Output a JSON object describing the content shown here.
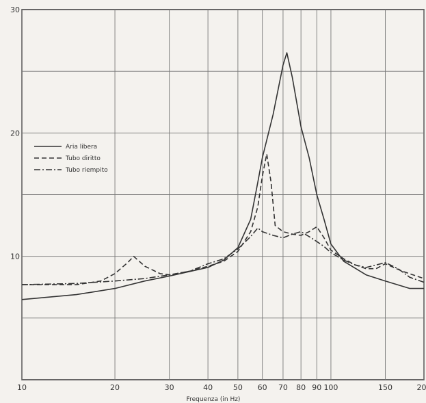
{
  "chart_data": {
    "type": "line",
    "title": "",
    "xlabel": "Frequenza (in Hz)",
    "ylabel": "",
    "x_scale": "log",
    "xlim": [
      10,
      200
    ],
    "ylim": [
      0,
      30
    ],
    "grid": true,
    "legend_position": "upper-left",
    "x_tick_values": [
      10,
      20,
      30,
      40,
      50,
      60,
      70,
      80,
      90,
      100,
      150,
      200
    ],
    "x_tick_labels": [
      "10",
      "20",
      "30",
      "40",
      "50",
      "60",
      "70",
      "80",
      "90",
      "100",
      "150",
      "200"
    ],
    "y_tick_values": [
      10,
      20,
      30
    ],
    "y_tick_labels": [
      "10",
      "20",
      "30"
    ],
    "series": [
      {
        "name": "Aria libera",
        "dash": "solid",
        "points": [
          [
            10,
            6.5
          ],
          [
            15,
            6.9
          ],
          [
            20,
            7.4
          ],
          [
            25,
            8.0
          ],
          [
            30,
            8.4
          ],
          [
            40,
            9.1
          ],
          [
            45,
            9.7
          ],
          [
            50,
            10.7
          ],
          [
            55,
            13.0
          ],
          [
            58,
            16.0
          ],
          [
            60,
            18.0
          ],
          [
            65,
            21.5
          ],
          [
            70,
            25.5
          ],
          [
            72,
            26.5
          ],
          [
            75,
            24.5
          ],
          [
            80,
            20.5
          ],
          [
            85,
            18.0
          ],
          [
            90,
            15.0
          ],
          [
            95,
            13.0
          ],
          [
            100,
            11.0
          ],
          [
            110,
            9.6
          ],
          [
            130,
            8.5
          ],
          [
            150,
            8.0
          ],
          [
            180,
            7.4
          ],
          [
            200,
            7.4
          ]
        ]
      },
      {
        "name": "Tubo diritto",
        "dash": "dashed",
        "points": [
          [
            10,
            7.7
          ],
          [
            15,
            7.7
          ],
          [
            18,
            8.0
          ],
          [
            20,
            8.6
          ],
          [
            22,
            9.5
          ],
          [
            23,
            10.0
          ],
          [
            25,
            9.2
          ],
          [
            28,
            8.6
          ],
          [
            30,
            8.5
          ],
          [
            35,
            8.8
          ],
          [
            40,
            9.2
          ],
          [
            45,
            9.6
          ],
          [
            50,
            10.4
          ],
          [
            55,
            12.0
          ],
          [
            58,
            14.0
          ],
          [
            60,
            16.5
          ],
          [
            62,
            18.3
          ],
          [
            64,
            16.0
          ],
          [
            66,
            12.5
          ],
          [
            70,
            12.0
          ],
          [
            75,
            11.8
          ],
          [
            80,
            11.7
          ],
          [
            85,
            12.0
          ],
          [
            90,
            12.4
          ],
          [
            95,
            11.5
          ],
          [
            100,
            10.5
          ],
          [
            110,
            9.8
          ],
          [
            120,
            9.3
          ],
          [
            130,
            9.0
          ],
          [
            140,
            9.0
          ],
          [
            150,
            9.4
          ],
          [
            170,
            8.8
          ],
          [
            200,
            8.2
          ]
        ]
      },
      {
        "name": "Tubo riempito",
        "dash": "dashdot",
        "points": [
          [
            10,
            7.7
          ],
          [
            15,
            7.8
          ],
          [
            20,
            8.0
          ],
          [
            25,
            8.2
          ],
          [
            30,
            8.5
          ],
          [
            35,
            8.8
          ],
          [
            40,
            9.4
          ],
          [
            45,
            9.8
          ],
          [
            50,
            10.6
          ],
          [
            55,
            11.6
          ],
          [
            58,
            12.3
          ],
          [
            60,
            12.0
          ],
          [
            65,
            11.7
          ],
          [
            70,
            11.5
          ],
          [
            75,
            11.8
          ],
          [
            80,
            12.0
          ],
          [
            85,
            11.6
          ],
          [
            90,
            11.2
          ],
          [
            95,
            10.8
          ],
          [
            100,
            10.3
          ],
          [
            110,
            9.7
          ],
          [
            120,
            9.3
          ],
          [
            130,
            9.1
          ],
          [
            140,
            9.3
          ],
          [
            150,
            9.5
          ],
          [
            165,
            9.0
          ],
          [
            180,
            8.3
          ],
          [
            200,
            7.9
          ]
        ]
      }
    ]
  }
}
